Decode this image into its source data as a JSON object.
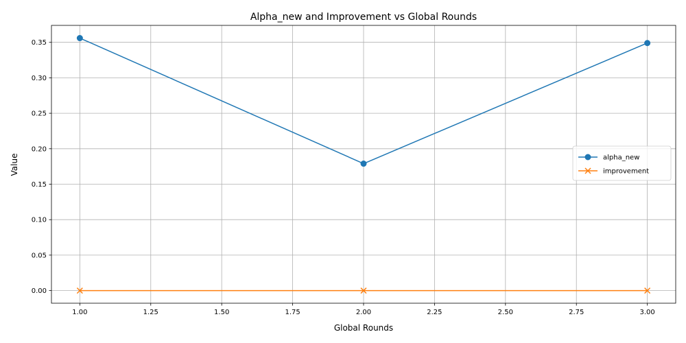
{
  "chart_data": {
    "type": "line",
    "title": "Alpha_new and Improvement vs Global Rounds",
    "xlabel": "Global Rounds",
    "ylabel": "Value",
    "x": [
      1,
      2,
      3
    ],
    "xlim": [
      0.9,
      3.1
    ],
    "ylim": [
      -0.0178,
      0.3739
    ],
    "xticks": [
      1.0,
      1.25,
      1.5,
      1.75,
      2.0,
      2.25,
      2.5,
      2.75,
      3.0
    ],
    "xtick_labels": [
      "1.00",
      "1.25",
      "1.50",
      "1.75",
      "2.00",
      "2.25",
      "2.50",
      "2.75",
      "3.00"
    ],
    "yticks": [
      0.0,
      0.05,
      0.1,
      0.15,
      0.2,
      0.25,
      0.3,
      0.35
    ],
    "ytick_labels": [
      "0.00",
      "0.05",
      "0.10",
      "0.15",
      "0.20",
      "0.25",
      "0.30",
      "0.35"
    ],
    "grid": true,
    "legend_position": "center-right",
    "series": [
      {
        "name": "alpha_new",
        "values": [
          0.356,
          0.179,
          0.349
        ],
        "color": "#1f77b4",
        "marker": "circle"
      },
      {
        "name": "improvement",
        "values": [
          0.0,
          0.0,
          0.0
        ],
        "color": "#ff7f0e",
        "marker": "x"
      }
    ]
  }
}
